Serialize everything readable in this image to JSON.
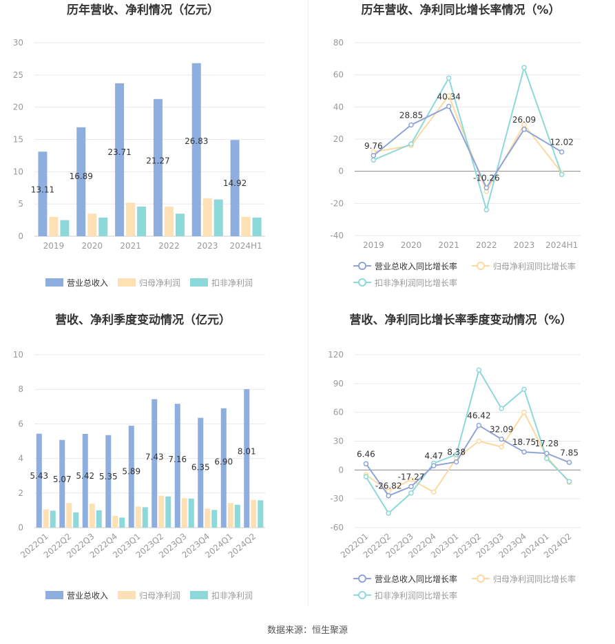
{
  "colors": {
    "revenue_bar": "#8eaee0",
    "parent_net_bar": "#fde0b3",
    "deducted_net_bar": "#8dd8d8",
    "revenue_line": "#8ea4d8",
    "parent_net_line": "#fdd9a0",
    "deducted_net_line": "#8dd8d8",
    "grid": "#e8e8e8",
    "axis_text": "#999999",
    "title_text": "#333333"
  },
  "legends": {
    "bar": [
      "营业总收入",
      "归母净利润",
      "扣非净利润"
    ],
    "line": [
      "营业总收入同比增长率",
      "归母净利润同比增长率",
      "扣非净利润同比增长率"
    ]
  },
  "source_text": "数据来源：恒生聚源",
  "chart_data": [
    {
      "type": "bar",
      "title": "历年营收、净利情况（亿元）",
      "categories": [
        "2019",
        "2020",
        "2021",
        "2022",
        "2023",
        "2024H1"
      ],
      "ylim": [
        0,
        30
      ],
      "yticks": [
        0,
        5,
        10,
        15,
        20,
        25,
        30
      ],
      "series": [
        {
          "name": "营业总收入",
          "values": [
            13.11,
            16.89,
            23.71,
            21.27,
            26.83,
            14.92
          ]
        },
        {
          "name": "归母净利润",
          "values": [
            3.0,
            3.5,
            5.2,
            4.6,
            5.9,
            3.0
          ]
        },
        {
          "name": "扣非净利润",
          "values": [
            2.5,
            2.9,
            4.6,
            3.5,
            5.7,
            2.9
          ]
        }
      ],
      "labels": [
        "13.11",
        "16.89",
        "23.71",
        "21.27",
        "26.83",
        "14.92"
      ],
      "legend_position": "bottom"
    },
    {
      "type": "line",
      "title": "历年营收、净利同比增长率情况（%）",
      "categories": [
        "2019",
        "2020",
        "2021",
        "2022",
        "2023",
        "2024H1"
      ],
      "ylim": [
        -40,
        80
      ],
      "yticks": [
        -40,
        -20,
        0,
        20,
        40,
        60,
        80
      ],
      "series": [
        {
          "name": "营业总收入同比增长率",
          "values": [
            9.76,
            28.85,
            40.34,
            -10.26,
            26.09,
            12.02
          ]
        },
        {
          "name": "归母净利润同比增长率",
          "values": [
            12.0,
            16.0,
            47.0,
            -12.5,
            29.0,
            -1.0
          ]
        },
        {
          "name": "扣非净利润同比增长率",
          "values": [
            7.0,
            17.0,
            58.0,
            -24.0,
            64.5,
            -2.0
          ]
        }
      ],
      "labels": [
        "9.76",
        "28.85",
        "40.34",
        "-10.26",
        "26.09",
        "12.02"
      ],
      "legend_position": "bottom"
    },
    {
      "type": "bar",
      "title": "营收、净利季度变动情况（亿元）",
      "categories": [
        "2022Q1",
        "2022Q2",
        "2022Q3",
        "2022Q4",
        "2023Q1",
        "2023Q2",
        "2023Q3",
        "2023Q4",
        "2024Q1",
        "2024Q2"
      ],
      "ylim": [
        0,
        10
      ],
      "yticks": [
        0,
        2,
        4,
        6,
        8,
        10
      ],
      "series": [
        {
          "name": "营业总收入",
          "values": [
            5.43,
            5.07,
            5.42,
            5.35,
            5.89,
            7.43,
            7.16,
            6.35,
            6.9,
            8.01
          ]
        },
        {
          "name": "归母净利润",
          "values": [
            1.05,
            1.42,
            1.38,
            0.68,
            1.22,
            1.85,
            1.7,
            1.1,
            1.42,
            1.6
          ]
        },
        {
          "name": "扣非净利润",
          "values": [
            0.98,
            0.88,
            1.0,
            0.58,
            1.18,
            1.8,
            1.68,
            1.02,
            1.32,
            1.58
          ]
        }
      ],
      "labels": [
        "5.43",
        "5.07",
        "5.42",
        "5.35",
        "5.89",
        "7.43",
        "7.16",
        "6.35",
        "6.90",
        "8.01"
      ],
      "legend_position": "bottom"
    },
    {
      "type": "line",
      "title": "营收、净利同比增长率季度变动情况（%）",
      "categories": [
        "2022Q1",
        "2022Q2",
        "2022Q3",
        "2022Q4",
        "2023Q1",
        "2023Q2",
        "2023Q3",
        "2023Q4",
        "2024Q1",
        "2024Q2"
      ],
      "ylim": [
        -60,
        120
      ],
      "yticks": [
        -60,
        -30,
        0,
        30,
        60,
        90,
        120
      ],
      "series": [
        {
          "name": "营业总收入同比增长率",
          "values": [
            6.46,
            -26.82,
            -17.27,
            4.47,
            8.38,
            46.42,
            32.09,
            18.75,
            17.28,
            7.85
          ]
        },
        {
          "name": "归母净利润同比增长率",
          "values": [
            -5.0,
            -22.0,
            -10.0,
            -23.0,
            12.0,
            30.0,
            24.0,
            60.0,
            14.0,
            -13.0
          ]
        },
        {
          "name": "扣非净利润同比增长率",
          "values": [
            -7.0,
            -45.0,
            -24.0,
            7.0,
            16.0,
            104.0,
            64.0,
            84.0,
            12.0,
            -12.0
          ]
        }
      ],
      "labels": [
        "6.46",
        "-26.82",
        "-17.27",
        "4.47",
        "8.38",
        "46.42",
        "32.09",
        "18.75",
        "17.28",
        "7.85"
      ],
      "legend_position": "bottom"
    }
  ]
}
